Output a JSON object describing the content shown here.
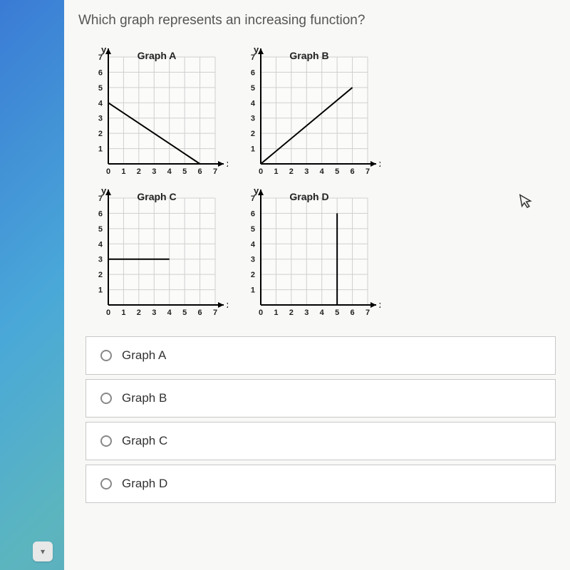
{
  "question": "Which graph represents an increasing function?",
  "colors": {
    "page_bg": "#f8f8f6",
    "grid_line": "#cfcfcf",
    "axis": "#000000",
    "plot_line": "#000000",
    "text": "#333333",
    "option_border": "#c8c8c8"
  },
  "axis": {
    "xlabel": "x",
    "ylabel": "y",
    "xticks": [
      0,
      1,
      2,
      3,
      4,
      5,
      6,
      7
    ],
    "yticks": [
      1,
      2,
      3,
      4,
      5,
      6,
      7
    ],
    "xlim": [
      0,
      7
    ],
    "ylim": [
      0,
      7
    ],
    "tick_fontsize": 11
  },
  "graphs": [
    {
      "id": "A",
      "title": "Graph A",
      "type": "line",
      "points": [
        [
          0,
          4
        ],
        [
          6,
          0
        ]
      ],
      "line_width": 2
    },
    {
      "id": "B",
      "title": "Graph B",
      "type": "line",
      "points": [
        [
          0,
          0
        ],
        [
          6,
          5
        ]
      ],
      "line_width": 2
    },
    {
      "id": "C",
      "title": "Graph C",
      "type": "line",
      "points": [
        [
          0,
          3
        ],
        [
          4,
          3
        ]
      ],
      "line_width": 2
    },
    {
      "id": "D",
      "title": "Graph D",
      "type": "line",
      "points": [
        [
          5,
          0
        ],
        [
          5,
          6
        ]
      ],
      "line_width": 2
    }
  ],
  "options": [
    {
      "label": "Graph A",
      "value": "A"
    },
    {
      "label": "Graph B",
      "value": "B"
    },
    {
      "label": "Graph C",
      "value": "C"
    },
    {
      "label": "Graph D",
      "value": "D"
    }
  ]
}
